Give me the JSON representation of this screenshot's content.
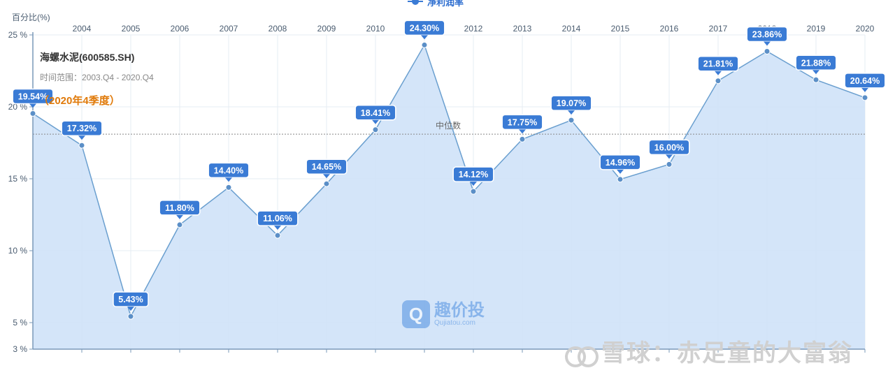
{
  "legend": {
    "label": "净利润率"
  },
  "info": {
    "company": "海螺水泥(600585.SH)",
    "range": "时间范围：2003.Q4 - 2020.Q4",
    "quarter": "（2020年4季度）"
  },
  "watermark": {
    "cn": "趣价投",
    "en": "Qujiatou.com",
    "logo_glyph": "Q"
  },
  "overlay_text": "雪球：赤足童的大富翁",
  "chart_data": {
    "type": "area",
    "title": "",
    "xlabel": "",
    "ylabel": "百分比(%)",
    "x": [
      "2003",
      "2004",
      "2005",
      "2006",
      "2007",
      "2008",
      "2009",
      "2010",
      "2011",
      "2012",
      "2013",
      "2014",
      "2015",
      "2016",
      "2017",
      "2018",
      "2019",
      "2020"
    ],
    "x_tick_labels": [
      "2004",
      "2005",
      "2006",
      "2007",
      "2008",
      "2009",
      "2010",
      "2011",
      "2012",
      "2013",
      "2014",
      "2015",
      "2016",
      "2017",
      "2018",
      "2019",
      "2020"
    ],
    "series": [
      {
        "name": "净利润率",
        "values": [
          19.54,
          17.32,
          5.43,
          11.8,
          14.4,
          11.06,
          14.65,
          18.41,
          24.3,
          14.12,
          17.75,
          19.07,
          14.96,
          16.0,
          21.81,
          23.86,
          21.88,
          20.64
        ],
        "labels": [
          "19.54%",
          "17.32%",
          "5.43%",
          "11.80%",
          "14.40%",
          "11.06%",
          "14.65%",
          "18.41%",
          "24.30%",
          "14.12%",
          "17.75%",
          "19.07%",
          "14.96%",
          "16.00%",
          "21.81%",
          "23.86%",
          "21.88%",
          "20.64%"
        ]
      }
    ],
    "ylim": [
      3,
      25
    ],
    "y_ticks": [
      3,
      5,
      10,
      15,
      20,
      25
    ],
    "y_tick_labels": [
      "3 %",
      "5 %",
      "10 %",
      "15 %",
      "20 %",
      "25 %"
    ],
    "median": {
      "value": 18.1,
      "label": "中位数"
    },
    "grid": true,
    "legend_position": "top-center",
    "colors": {
      "line": "#6a9fcf",
      "fill": "#cfe2f8",
      "label_bg": "#3a7bd5",
      "median": "#888888",
      "axis": "#7a98b8"
    }
  }
}
